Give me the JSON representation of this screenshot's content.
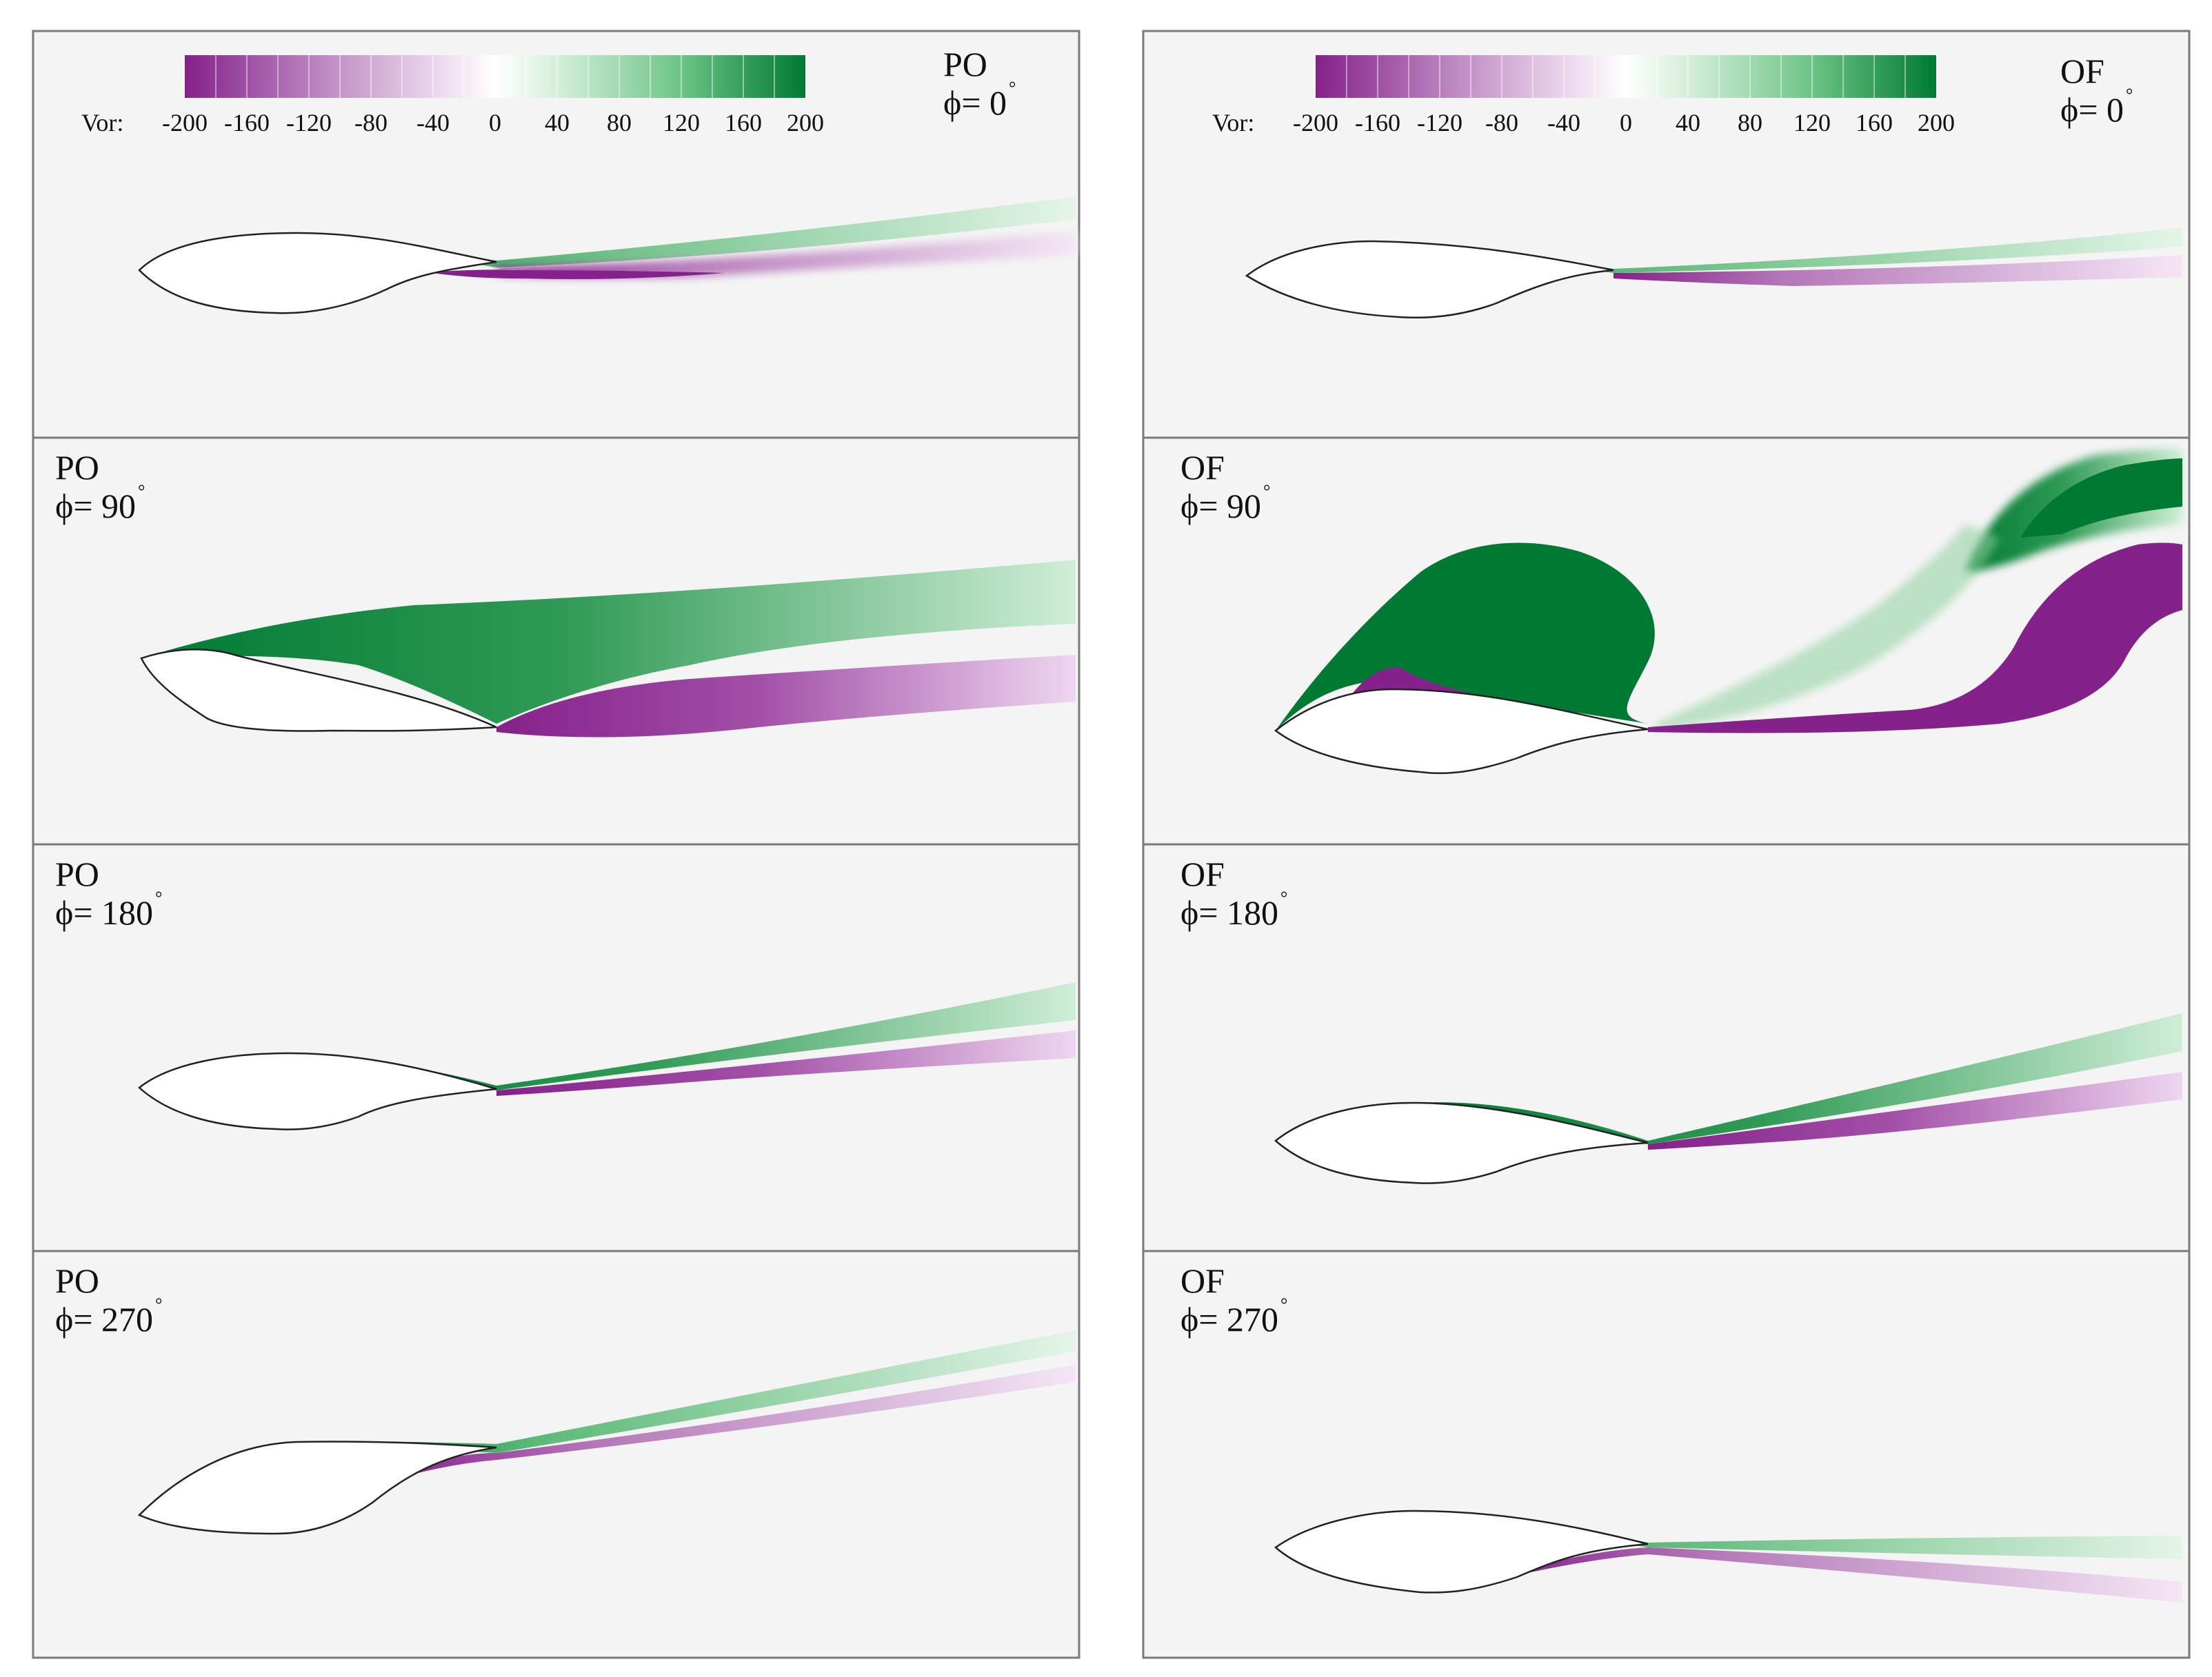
{
  "figure": {
    "columns": [
      {
        "id": "PO",
        "colorbar": {
          "label": "Vor:",
          "ticks": [
            "-200",
            "-160",
            "-120",
            "-80",
            "-40",
            "0",
            "40",
            "80",
            "120",
            "160",
            "200"
          ]
        },
        "panels": [
          {
            "case": "PO",
            "phase": "ϕ= 0",
            "degree": "°"
          },
          {
            "case": "PO",
            "phase": "ϕ= 90",
            "degree": "°"
          },
          {
            "case": "PO",
            "phase": "ϕ= 180",
            "degree": "°"
          },
          {
            "case": "PO",
            "phase": "ϕ= 270",
            "degree": "°"
          }
        ]
      },
      {
        "id": "OF",
        "colorbar": {
          "label": "Vor:",
          "ticks": [
            "-200",
            "-160",
            "-120",
            "-80",
            "-40",
            "0",
            "40",
            "80",
            "120",
            "160",
            "200"
          ]
        },
        "panels": [
          {
            "case": "OF",
            "phase": "ϕ= 0",
            "degree": "°"
          },
          {
            "case": "OF",
            "phase": "ϕ= 90",
            "degree": "°"
          },
          {
            "case": "OF",
            "phase": "ϕ= 180",
            "degree": "°"
          },
          {
            "case": "OF",
            "phase": "ϕ= 270",
            "degree": "°"
          }
        ]
      }
    ],
    "colors": {
      "positive": "#007a33",
      "negative": "#85218a",
      "zero": "#ffffff",
      "background": "#f4f4f4",
      "border": "#7a7a7a"
    }
  }
}
